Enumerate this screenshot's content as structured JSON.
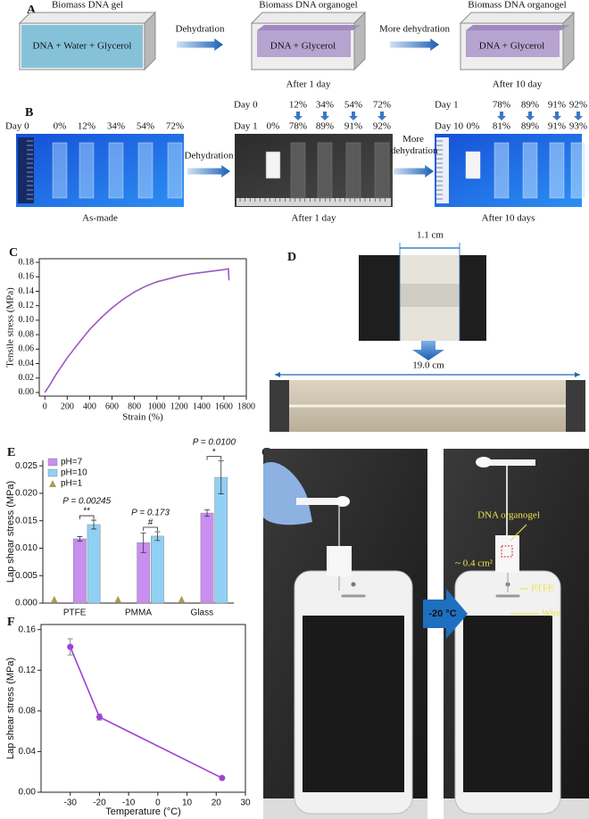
{
  "panel_a": {
    "label": "A",
    "arrows": [
      "Dehydration",
      "More dehydration"
    ],
    "stages": [
      {
        "title": "Biomass DNA gel",
        "content": "DNA + Water + Glycerol"
      },
      {
        "title": "Biomass DNA organogel",
        "content": "DNA + Glycerol",
        "caption": "After 1 day"
      },
      {
        "title": "Biomass DNA organogel",
        "content": "DNA + Glycerol",
        "caption": "After 10 day"
      }
    ]
  },
  "panel_b": {
    "label": "B",
    "arrows": [
      "Dehydration",
      "More dehydration"
    ],
    "photos": [
      {
        "rows": [
          {
            "day": "Day 0",
            "values": [
              "0%",
              "12%",
              "34%",
              "54%",
              "72%"
            ]
          }
        ],
        "caption": "As-made"
      },
      {
        "rows": [
          {
            "day": "Day 0",
            "values": [
              "12%",
              "34%",
              "54%",
              "72%"
            ]
          },
          {
            "day": "Day 1",
            "values": [
              "0%",
              "78%",
              "89%",
              "91%",
              "92%"
            ]
          }
        ],
        "caption": "After 1 day"
      },
      {
        "rows": [
          {
            "day": "Day 1",
            "values": [
              "78%",
              "89%",
              "91%",
              "92%"
            ]
          },
          {
            "day": "Day 10",
            "values": [
              "0%",
              "81%",
              "89%",
              "91%",
              "93%"
            ]
          }
        ],
        "caption": "After 10 days"
      }
    ]
  },
  "panel_d": {
    "label": "D",
    "width": "1.1 cm",
    "length": "19.0 cm"
  },
  "panel_g": {
    "label": "G",
    "condition": "-20 °C",
    "annotations": [
      "DNA organogel",
      "~ 0.4 cm²",
      "PTFE",
      "Wire"
    ]
  },
  "chart_data": [
    {
      "label": "C",
      "type": "line",
      "x_label": "Strain (%)",
      "y_label": "Tensile stress (MPa)",
      "color": "#9b59c0",
      "x": [
        0,
        50,
        100,
        200,
        300,
        400,
        500,
        600,
        700,
        800,
        900,
        1000,
        1100,
        1200,
        1300,
        1400,
        1500,
        1600,
        1640,
        1645
      ],
      "values": [
        0,
        0.012,
        0.025,
        0.048,
        0.068,
        0.087,
        0.103,
        0.117,
        0.129,
        0.139,
        0.147,
        0.153,
        0.157,
        0.161,
        0.164,
        0.166,
        0.168,
        0.17,
        0.171,
        0.155
      ],
      "xlim": [
        -50,
        1800
      ],
      "xticks": [
        0,
        200,
        400,
        600,
        800,
        1000,
        1200,
        1400,
        1600,
        1800
      ],
      "ylim": [
        -0.005,
        0.185
      ],
      "yticks": [
        {
          "value": 0,
          "label": "0.00"
        },
        0.02,
        0.04,
        0.06,
        0.08,
        {
          "value": 0.1,
          "label": "0.10"
        },
        0.12,
        0.14,
        0.16,
        0.18
      ]
    },
    {
      "label": "E",
      "type": "bar",
      "y_label": "Lap shear stress (MPa)",
      "categories": [
        "PTFE",
        "PMMA",
        "Glass"
      ],
      "series": [
        {
          "name": "pH=7",
          "color": "#c88ef0",
          "values": [
            0.0117,
            0.011,
            0.0164
          ],
          "errors": [
            0.0004,
            0.0018,
            0.0006
          ]
        },
        {
          "name": "pH=10",
          "color": "#90d0f5",
          "values": [
            0.0143,
            0.0122,
            0.0229
          ],
          "errors": [
            0.0008,
            0.0008,
            0.003
          ]
        },
        {
          "name": "pH=1",
          "color": "#a89c56",
          "marker": "triangle",
          "values": [
            0.0005,
            0.0005,
            0.0005
          ]
        }
      ],
      "significance": [
        {
          "p": "P = 0.00245",
          "mark": "**"
        },
        {
          "p": "P = 0.173",
          "mark": "#"
        },
        {
          "p": "P = 0.0100",
          "mark": "*"
        }
      ],
      "ylim": [
        0,
        0.026
      ],
      "yticks": [
        {
          "value": 0,
          "label": "0.000"
        },
        0.005,
        {
          "value": 0.01,
          "label": "0.010"
        },
        0.015,
        {
          "value": 0.02,
          "label": "0.020"
        },
        0.025
      ],
      "legend": "upper left"
    },
    {
      "label": "F",
      "type": "line",
      "x_label": "Temperature (°C)",
      "y_label": "Lap shear stress (MPa)",
      "color": "#a040d8",
      "markers": true,
      "x": [
        -30,
        -20,
        22
      ],
      "values": [
        0.143,
        0.074,
        0.014
      ],
      "errors": [
        0.008,
        0.003,
        0.001
      ],
      "xlim": [
        -40,
        30
      ],
      "xticks": [
        -30,
        -20,
        -10,
        0,
        10,
        20,
        30
      ],
      "ylim": [
        0,
        0.165
      ],
      "yticks": [
        {
          "value": 0,
          "label": "0.00"
        },
        0.04,
        0.08,
        0.12,
        0.16
      ]
    }
  ]
}
